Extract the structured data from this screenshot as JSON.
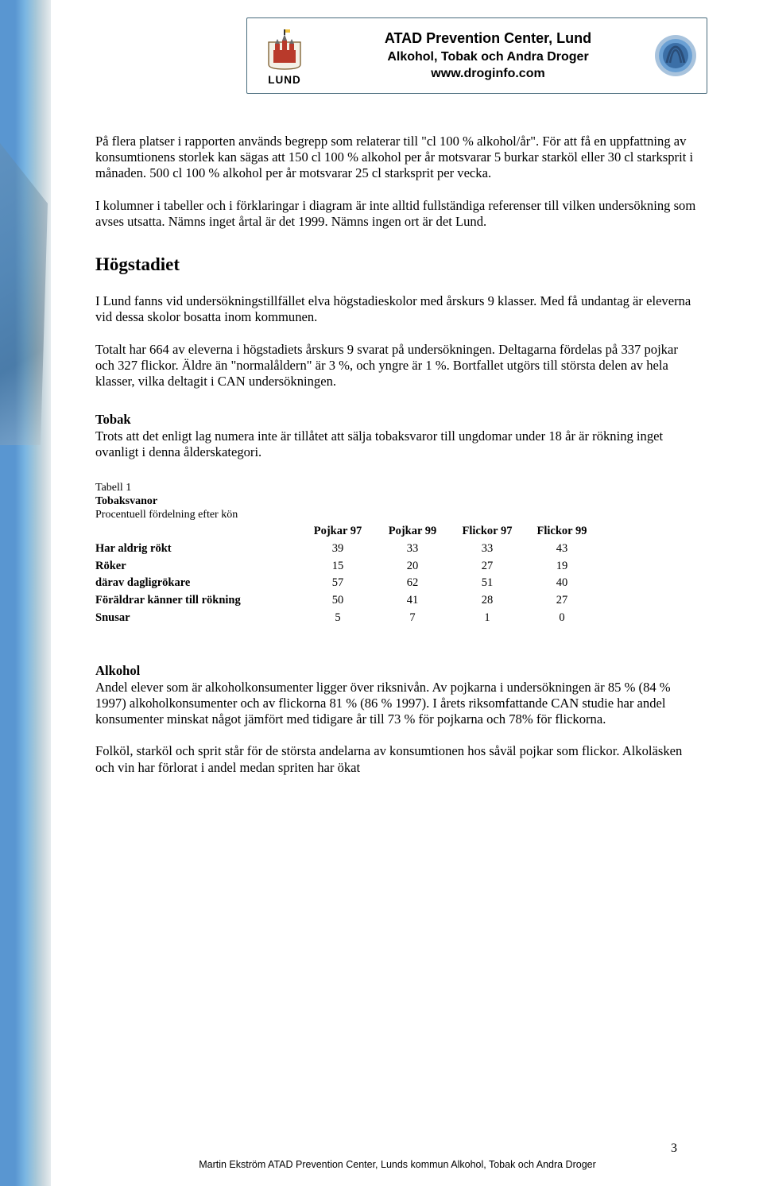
{
  "header": {
    "lund_label": "LUND",
    "title": "ATAD Prevention Center, Lund",
    "subtitle": "Alkohol, Tobak och Andra Droger",
    "link": "www.droginfo.com",
    "crest_colors": {
      "wall": "#b93a2b",
      "roof": "#6b6b6b",
      "flag": "#f2c23e",
      "outline": "#7a5a2a"
    },
    "badge_colors": {
      "ring_outer": "#a8c3dd",
      "ring_inner": "#6aa0d4",
      "center": "#3b6fa7",
      "arch": "#2a4d78"
    }
  },
  "paragraphs": {
    "p1": "På flera platser i rapporten används begrepp som relaterar till \"cl 100 % alkohol/år\". För att få en uppfattning av konsumtionens storlek kan sägas att 150 cl 100 % alkohol per år motsvarar 5 burkar starköl eller 30 cl starksprit i månaden. 500 cl 100 % alkohol per år motsvarar 25 cl starksprit per vecka.",
    "p2": "I kolumner i tabeller och i förklaringar i diagram är inte alltid fullständiga referenser till vilken undersökning som avses utsatta. Nämns inget årtal är det 1999. Nämns ingen ort är det Lund.",
    "h_hogstadiet": "Högstadiet",
    "p3": "I Lund fanns vid undersökningstillfället elva högstadieskolor med årskurs 9 klasser. Med få undantag är eleverna vid dessa skolor bosatta inom kommunen.",
    "p4": "Totalt har 664 av eleverna i högstadiets årskurs 9 svarat på undersökningen. Deltagarna fördelas på 337 pojkar och 327 flickor. Äldre än \"normalåldern\" är 3 %, och  yngre är 1 %. Bortfallet utgörs till största delen av hela klasser, vilka deltagit i CAN undersökningen.",
    "h_tobak": "Tobak",
    "p5": "Trots att det enligt lag numera inte är tillåtet att sälja tobaksvaror till ungdomar under 18 år är rökning inget ovanligt i denna ålderskategori.",
    "h_alkohol": "Alkohol",
    "p6": "Andel elever som är alkoholkonsumenter ligger över riksnivån. Av pojkarna i undersökningen är 85 % (84 % 1997) alkoholkonsumenter och av flickorna 81 % (86 % 1997). I årets riksomfattande CAN studie har andel konsumenter minskat något jämfört med tidigare år till 73 % för pojkarna och 78% för flickorna.",
    "p7": "Folköl, starköl och sprit står för de största andelarna av konsumtionen hos såväl pojkar som flickor. Alkoläsken och vin har förlorat i andel medan spriten har ökat"
  },
  "table1": {
    "caption_line1": "Tabell 1",
    "caption_line2": "Tobaksvanor",
    "caption_line3": "Procentuell fördelning efter kön",
    "columns": [
      "Pojkar 97",
      "Pojkar 99",
      "Flickor 97",
      "Flickor 99"
    ],
    "rows": [
      {
        "label": "Har aldrig rökt",
        "values": [
          39,
          33,
          33,
          43
        ]
      },
      {
        "label": "Röker",
        "values": [
          15,
          20,
          27,
          19
        ]
      },
      {
        "label": "därav dagligrökare",
        "values": [
          57,
          62,
          51,
          40
        ]
      },
      {
        "label": "Föräldrar känner till rökning",
        "values": [
          50,
          41,
          28,
          27
        ]
      },
      {
        "label": "Snusar",
        "values": [
          5,
          7,
          1,
          0
        ]
      }
    ]
  },
  "footer": {
    "text": "Martin Ekström ATAD Prevention Center, Lunds kommun Alkohol, Tobak och Andra Droger",
    "page_number": "3"
  }
}
